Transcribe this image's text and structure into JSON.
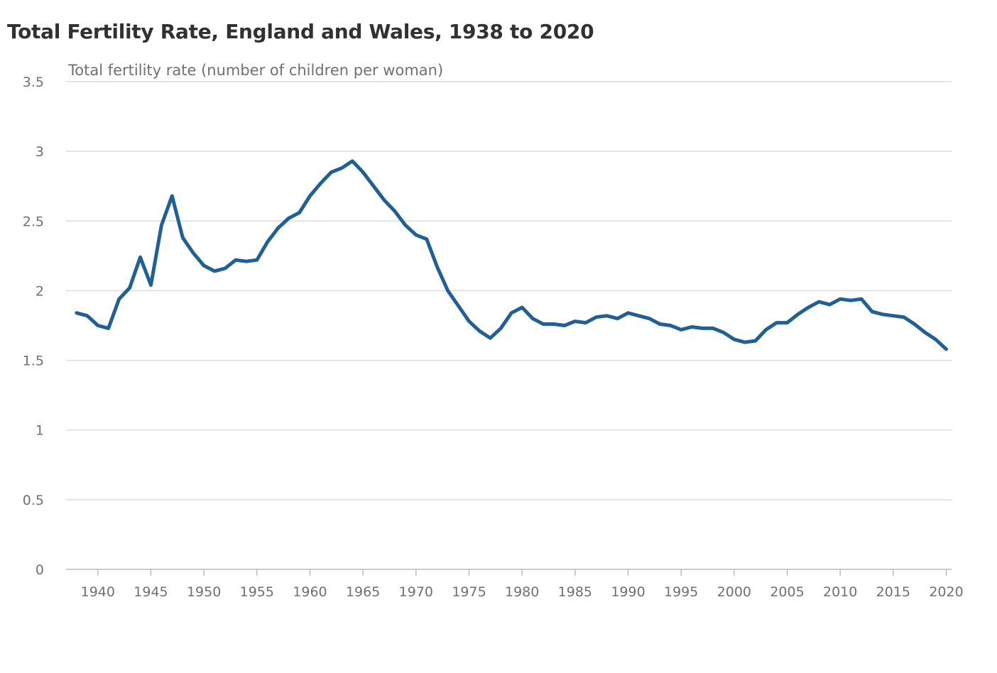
{
  "chart_data": {
    "type": "line",
    "title": "Total Fertility Rate, England and Wales, 1938 to 2020",
    "ylabel": "Total fertility rate (number of children per woman)",
    "xlabel": "",
    "xlim": [
      1937,
      2020.5
    ],
    "ylim": [
      0,
      3.5
    ],
    "x_ticks": [
      1940,
      1945,
      1950,
      1955,
      1960,
      1965,
      1970,
      1975,
      1980,
      1985,
      1990,
      1995,
      2000,
      2005,
      2010,
      2015,
      2020
    ],
    "x_tick_labels": [
      "1940",
      "1945",
      "1950",
      "1955",
      "1960",
      "1965",
      "1970",
      "1975",
      "1980",
      "1985",
      "1990",
      "1995",
      "2000",
      "2005",
      "2010",
      "2015",
      "2020"
    ],
    "y_ticks": [
      0,
      0.5,
      1,
      1.5,
      2,
      2.5,
      3,
      3.5
    ],
    "y_tick_labels": [
      "0",
      "0.5",
      "1",
      "1.5",
      "2",
      "2.5",
      "3",
      "3.5"
    ],
    "grid": true,
    "series": [
      {
        "name": "Total fertility rate",
        "color": "#206095",
        "x": [
          1938,
          1939,
          1940,
          1941,
          1942,
          1943,
          1944,
          1945,
          1946,
          1947,
          1948,
          1949,
          1950,
          1951,
          1952,
          1953,
          1954,
          1955,
          1956,
          1957,
          1958,
          1959,
          1960,
          1961,
          1962,
          1963,
          1964,
          1965,
          1966,
          1967,
          1968,
          1969,
          1970,
          1971,
          1972,
          1973,
          1974,
          1975,
          1976,
          1977,
          1978,
          1979,
          1980,
          1981,
          1982,
          1983,
          1984,
          1985,
          1986,
          1987,
          1988,
          1989,
          1990,
          1991,
          1992,
          1993,
          1994,
          1995,
          1996,
          1997,
          1998,
          1999,
          2000,
          2001,
          2002,
          2003,
          2004,
          2005,
          2006,
          2007,
          2008,
          2009,
          2010,
          2011,
          2012,
          2013,
          2014,
          2015,
          2016,
          2017,
          2018,
          2019,
          2020
        ],
        "values": [
          1.84,
          1.82,
          1.75,
          1.73,
          1.94,
          2.02,
          2.24,
          2.04,
          2.47,
          2.68,
          2.38,
          2.27,
          2.18,
          2.14,
          2.16,
          2.22,
          2.21,
          2.22,
          2.35,
          2.45,
          2.52,
          2.56,
          2.68,
          2.77,
          2.85,
          2.88,
          2.93,
          2.85,
          2.75,
          2.65,
          2.57,
          2.47,
          2.4,
          2.37,
          2.17,
          2.0,
          1.89,
          1.78,
          1.71,
          1.66,
          1.73,
          1.84,
          1.88,
          1.8,
          1.76,
          1.76,
          1.75,
          1.78,
          1.77,
          1.81,
          1.82,
          1.8,
          1.84,
          1.82,
          1.8,
          1.76,
          1.75,
          1.72,
          1.74,
          1.73,
          1.73,
          1.7,
          1.65,
          1.63,
          1.64,
          1.72,
          1.77,
          1.77,
          1.83,
          1.88,
          1.92,
          1.9,
          1.94,
          1.93,
          1.94,
          1.85,
          1.83,
          1.82,
          1.81,
          1.76,
          1.7,
          1.65,
          1.58
        ]
      }
    ]
  }
}
